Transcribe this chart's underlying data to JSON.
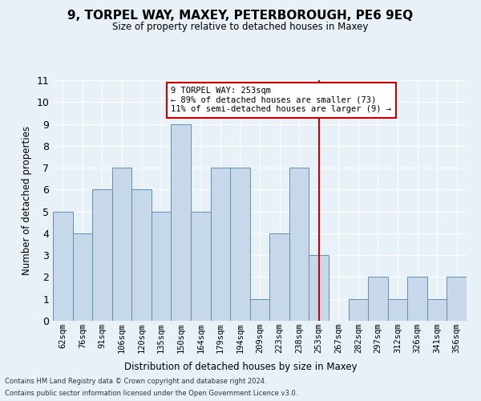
{
  "title": "9, TORPEL WAY, MAXEY, PETERBOROUGH, PE6 9EQ",
  "subtitle": "Size of property relative to detached houses in Maxey",
  "xlabel": "Distribution of detached houses by size in Maxey",
  "ylabel": "Number of detached properties",
  "categories": [
    "62sqm",
    "76sqm",
    "91sqm",
    "106sqm",
    "120sqm",
    "135sqm",
    "150sqm",
    "164sqm",
    "179sqm",
    "194sqm",
    "209sqm",
    "223sqm",
    "238sqm",
    "253sqm",
    "267sqm",
    "282sqm",
    "297sqm",
    "312sqm",
    "326sqm",
    "341sqm",
    "356sqm"
  ],
  "values": [
    5,
    4,
    6,
    7,
    6,
    5,
    9,
    5,
    7,
    7,
    1,
    4,
    7,
    3,
    0,
    1,
    2,
    1,
    2,
    1,
    2
  ],
  "bar_color": "#c8d8eb",
  "bar_edgecolor": "#6090b0",
  "vline_x_index": 13,
  "vline_color": "#cc0000",
  "ylim": [
    0,
    11
  ],
  "yticks": [
    0,
    1,
    2,
    3,
    4,
    5,
    6,
    7,
    8,
    9,
    10,
    11
  ],
  "annotation_title": "9 TORPEL WAY: 253sqm",
  "annotation_line1": "← 89% of detached houses are smaller (73)",
  "annotation_line2": "11% of semi-detached houses are larger (9) →",
  "annotation_box_color": "#ffffff",
  "annotation_box_edgecolor": "#cc0000",
  "bg_color": "#e8f0f8",
  "grid_color": "#ffffff",
  "footer1": "Contains HM Land Registry data © Crown copyright and database right 2024.",
  "footer2": "Contains public sector information licensed under the Open Government Licence v3.0."
}
